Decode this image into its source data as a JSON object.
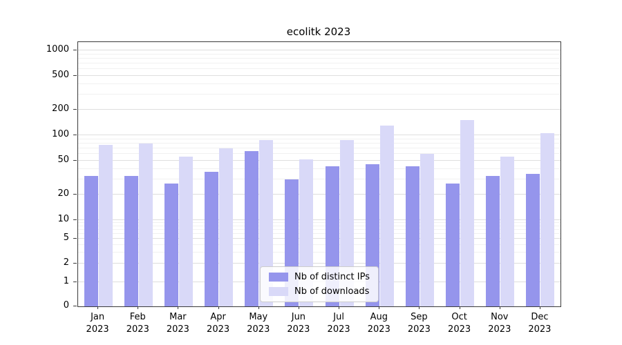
{
  "title": "ecolitk 2023",
  "legend": {
    "items": [
      {
        "label": "Nb of distinct IPs",
        "color": "#9595ec"
      },
      {
        "label": "Nb of downloads",
        "color": "#d9d9f8"
      }
    ]
  },
  "chart_data": {
    "type": "bar",
    "title": "ecolitk 2023",
    "categories": [
      "Jan 2023",
      "Feb 2023",
      "Mar 2023",
      "Apr 2023",
      "May 2023",
      "Jun 2023",
      "Jul 2023",
      "Aug 2023",
      "Sep 2023",
      "Oct 2023",
      "Nov 2023",
      "Dec 2023"
    ],
    "series": [
      {
        "name": "Nb of distinct IPs",
        "color": "#9595ec",
        "values": [
          33,
          33,
          27,
          37,
          65,
          30,
          43,
          46,
          43,
          27,
          33,
          35
        ]
      },
      {
        "name": "Nb of downloads",
        "color": "#d9d9f8",
        "values": [
          77,
          80,
          56,
          70,
          88,
          52,
          88,
          130,
          60,
          150,
          56,
          105
        ]
      }
    ],
    "yscale": "symlog",
    "yticks": [
      0,
      1,
      2,
      5,
      10,
      20,
      50,
      100,
      200,
      500,
      1000
    ],
    "ylim": [
      0,
      1400
    ],
    "xlabel": "",
    "ylabel": "",
    "grid": true,
    "legend_position": "lower center"
  }
}
